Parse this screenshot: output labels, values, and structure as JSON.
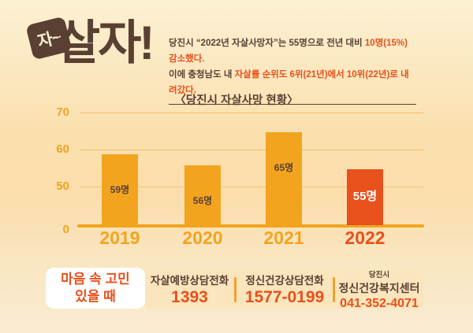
{
  "logo": {
    "badge": "자~",
    "title": "살자!"
  },
  "intro": {
    "line1_pre": "당진시 “2022년 자살사망자”는 55명으로 전년 대비 ",
    "line1_em": "10명(15%) 감소했다.",
    "line2_pre": "이에 충청남도 내 ",
    "line2_em": "자살률 순위도 6위(21년)에서 10위(22년)로 내려갔다."
  },
  "chart_data": {
    "type": "bar",
    "title": "〈당진시 자살사망 현황〉",
    "categories": [
      "2019",
      "2020",
      "2021",
      "2022"
    ],
    "values": [
      59,
      56,
      65,
      55
    ],
    "value_labels": [
      "59명",
      "56명",
      "65명",
      "55명"
    ],
    "unit": "명",
    "yticks": [
      70,
      60,
      50,
      0
    ],
    "ylim": [
      0,
      70
    ],
    "axis_break": true,
    "grid": true,
    "legend": "none",
    "bar_colors": [
      "#F2A41F",
      "#F2A41F",
      "#F2A41F",
      "#E8501C"
    ],
    "highlight_index": 3
  },
  "footer": {
    "callout_line1": "마음 속 고민",
    "callout_line2": "있을 때",
    "contacts": [
      {
        "label": "자살예방상담전화",
        "number": "1393"
      },
      {
        "label": "정신건강상담전화",
        "number": "1577-0199"
      },
      {
        "sub": "당진시",
        "label": "정신건강복지센터",
        "number": "041-352-4071"
      }
    ]
  },
  "colors": {
    "brown": "#5A4033",
    "orange": "#F2A41F",
    "accent_red": "#E8501C",
    "banner_bg": "#FBE5BD",
    "cream_text": "#FBEFD2",
    "gridline": "#F0BC74"
  }
}
